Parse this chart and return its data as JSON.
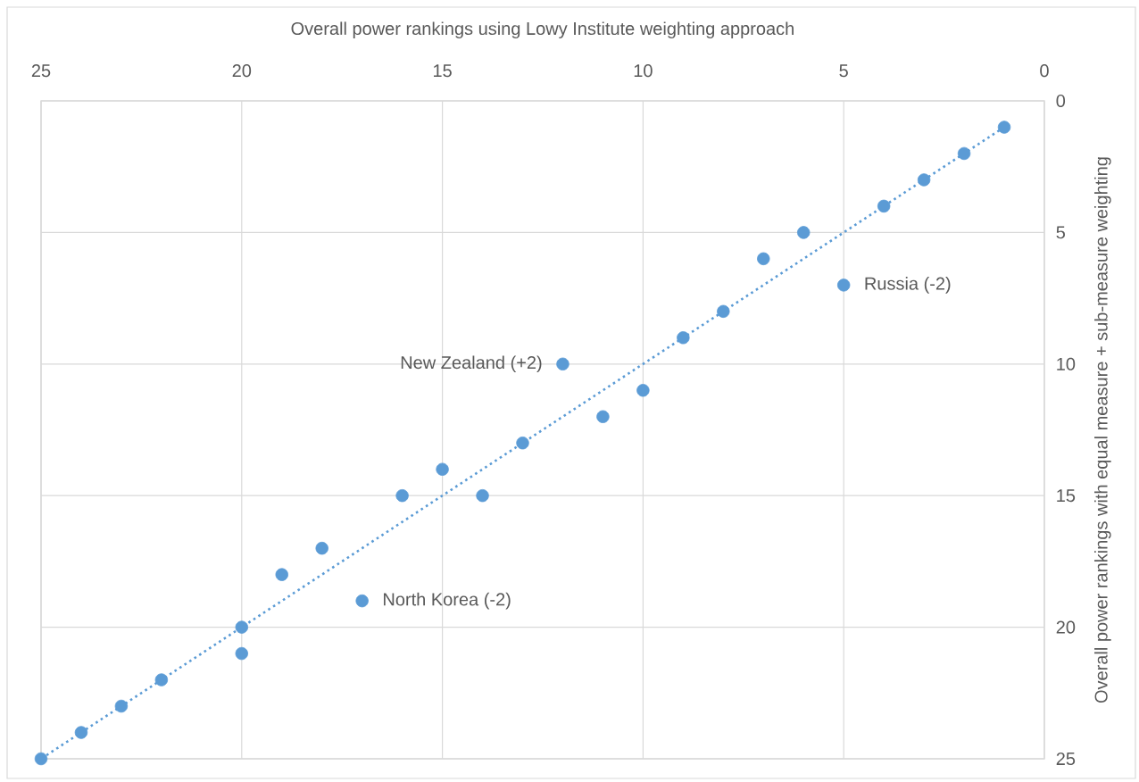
{
  "chart_data": {
    "type": "scatter",
    "xlabel": "Overall power rankings using Lowy Institute weighting approach",
    "ylabel": "Overall power rankings with equal measure + sub-measure weighting",
    "xlim": [
      25,
      0
    ],
    "xticks": [
      25,
      20,
      15,
      10,
      5,
      0
    ],
    "ylim": [
      25,
      0
    ],
    "yticks": [
      0,
      5,
      10,
      15,
      20,
      25
    ],
    "grid": true,
    "series": [
      {
        "type": "scatter",
        "color": "#5b9bd5",
        "x": [
          1,
          2,
          3,
          4,
          6,
          7,
          5,
          8,
          9,
          12,
          10,
          11,
          13,
          15,
          16,
          14,
          18,
          19,
          17,
          20,
          20,
          22,
          23,
          24,
          25
        ],
        "values": [
          1,
          2,
          3,
          4,
          5,
          6,
          7,
          8,
          9,
          10,
          11,
          12,
          13,
          14,
          15,
          15,
          17,
          18,
          19,
          20,
          21,
          22,
          23,
          24,
          25
        ]
      },
      {
        "type": "line",
        "color": "#5b9bd5",
        "line_style": "dotted",
        "x": [
          1,
          25
        ],
        "values": [
          1,
          25
        ]
      }
    ],
    "annotations": [
      {
        "text": "New Zealand (+2)",
        "x": 12,
        "y": 10
      },
      {
        "text": "Russia (-2)",
        "x": 5,
        "y": 7
      },
      {
        "text": "North Korea (-2)",
        "x": 17,
        "y": 19
      }
    ]
  }
}
